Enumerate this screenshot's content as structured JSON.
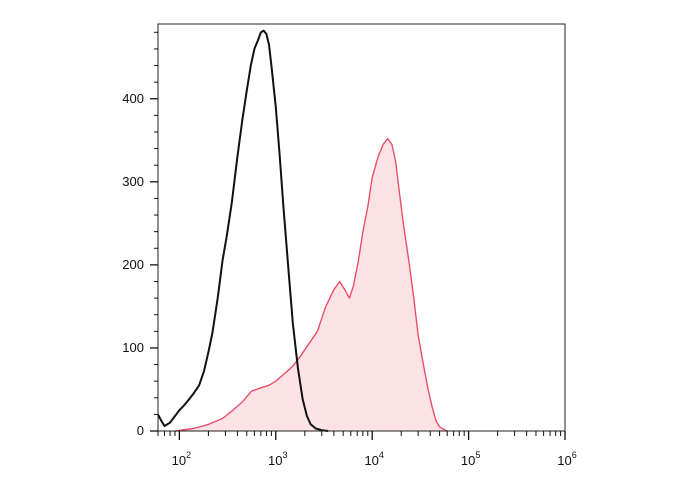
{
  "chart_data": {
    "type": "area",
    "title": "",
    "xlabel": "",
    "ylabel": "",
    "x_scale": "log",
    "xlim": [
      60,
      1000000
    ],
    "ylim": [
      0,
      490
    ],
    "grid": false,
    "x_tick_labels": [
      {
        "base": "10",
        "exp": "2",
        "value": 100
      },
      {
        "base": "10",
        "exp": "3",
        "value": 1000
      },
      {
        "base": "10",
        "exp": "4",
        "value": 10000
      },
      {
        "base": "10",
        "exp": "5",
        "value": 100000
      },
      {
        "base": "10",
        "exp": "6",
        "value": 1000000
      }
    ],
    "y_tick_labels": [
      {
        "label": "0",
        "value": 0
      },
      {
        "label": "100",
        "value": 100
      },
      {
        "label": "200",
        "value": 200
      },
      {
        "label": "300",
        "value": 300
      },
      {
        "label": "400",
        "value": 400
      }
    ],
    "series": [
      {
        "style": "filled",
        "color": "#e8506a",
        "fill": "#fde3e5",
        "x": [
          90,
          140,
          200,
          280,
          350,
          450,
          560,
          700,
          850,
          1000,
          1200,
          1500,
          1800,
          2200,
          2700,
          3300,
          4000,
          4600,
          5200,
          5800,
          6400,
          7200,
          8000,
          9000,
          10000,
          11500,
          13000,
          14500,
          16000,
          17500,
          19000,
          21000,
          24000,
          27000,
          30000,
          34000,
          38000,
          42000,
          46000,
          50000,
          55000,
          60000
        ],
        "y": [
          0,
          3,
          8,
          15,
          24,
          35,
          48,
          52,
          55,
          60,
          68,
          78,
          90,
          105,
          120,
          150,
          170,
          180,
          170,
          160,
          175,
          205,
          240,
          270,
          305,
          330,
          345,
          352,
          345,
          325,
          290,
          250,
          205,
          160,
          115,
          80,
          50,
          28,
          12,
          5,
          2,
          0
        ]
      },
      {
        "style": "line",
        "color": "#111111",
        "x": [
          60,
          65,
          70,
          80,
          90,
          100,
          110,
          120,
          140,
          160,
          180,
          200,
          220,
          250,
          280,
          310,
          350,
          400,
          450,
          500,
          550,
          600,
          650,
          700,
          750,
          800,
          850,
          900,
          1000,
          1100,
          1200,
          1350,
          1500,
          1700,
          1900,
          2100,
          2300,
          2600,
          3000,
          3500
        ],
        "y": [
          20,
          12,
          6,
          10,
          18,
          25,
          30,
          35,
          45,
          55,
          72,
          95,
          118,
          160,
          205,
          235,
          275,
          330,
          375,
          410,
          440,
          460,
          470,
          480,
          482,
          478,
          465,
          440,
          390,
          330,
          270,
          195,
          130,
          75,
          38,
          18,
          8,
          3,
          1,
          0
        ]
      }
    ]
  }
}
